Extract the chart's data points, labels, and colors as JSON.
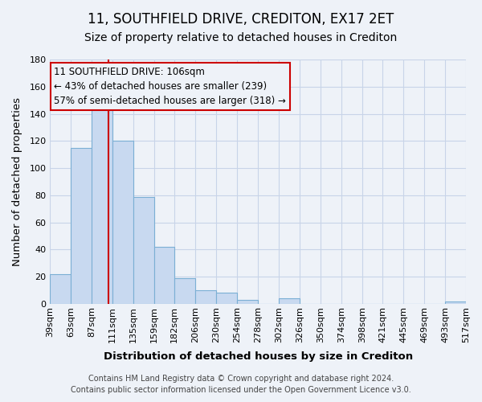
{
  "title": "11, SOUTHFIELD DRIVE, CREDITON, EX17 2ET",
  "subtitle": "Size of property relative to detached houses in Crediton",
  "xlabel": "Distribution of detached houses by size in Crediton",
  "ylabel": "Number of detached properties",
  "bin_edges": [
    39,
    63,
    87,
    111,
    135,
    159,
    182,
    206,
    230,
    254,
    278,
    302,
    326,
    350,
    374,
    398,
    421,
    445,
    469,
    493,
    517
  ],
  "bin_labels": [
    "39sqm",
    "63sqm",
    "87sqm",
    "111sqm",
    "135sqm",
    "159sqm",
    "182sqm",
    "206sqm",
    "230sqm",
    "254sqm",
    "278sqm",
    "302sqm",
    "326sqm",
    "350sqm",
    "374sqm",
    "398sqm",
    "421sqm",
    "445sqm",
    "469sqm",
    "493sqm",
    "517sqm"
  ],
  "counts": [
    22,
    115,
    147,
    120,
    79,
    42,
    19,
    10,
    8,
    3,
    0,
    4,
    0,
    0,
    0,
    0,
    0,
    0,
    0,
    2
  ],
  "bar_color": "#c8d9f0",
  "bar_edge_color": "#7bafd4",
  "property_size": 106,
  "property_line_color": "#cc0000",
  "annotation_line1": "11 SOUTHFIELD DRIVE: 106sqm",
  "annotation_line2": "← 43% of detached houses are smaller (239)",
  "annotation_line3": "57% of semi-detached houses are larger (318) →",
  "annotation_box_edge_color": "#cc0000",
  "ylim": [
    0,
    180
  ],
  "yticks": [
    0,
    20,
    40,
    60,
    80,
    100,
    120,
    140,
    160,
    180
  ],
  "footer_line1": "Contains HM Land Registry data © Crown copyright and database right 2024.",
  "footer_line2": "Contains public sector information licensed under the Open Government Licence v3.0.",
  "bg_color": "#eef2f8",
  "grid_color": "#c8d4e8",
  "title_fontsize": 12,
  "subtitle_fontsize": 10,
  "axis_label_fontsize": 9.5,
  "tick_fontsize": 8,
  "annotation_fontsize": 8.5,
  "footer_fontsize": 7
}
